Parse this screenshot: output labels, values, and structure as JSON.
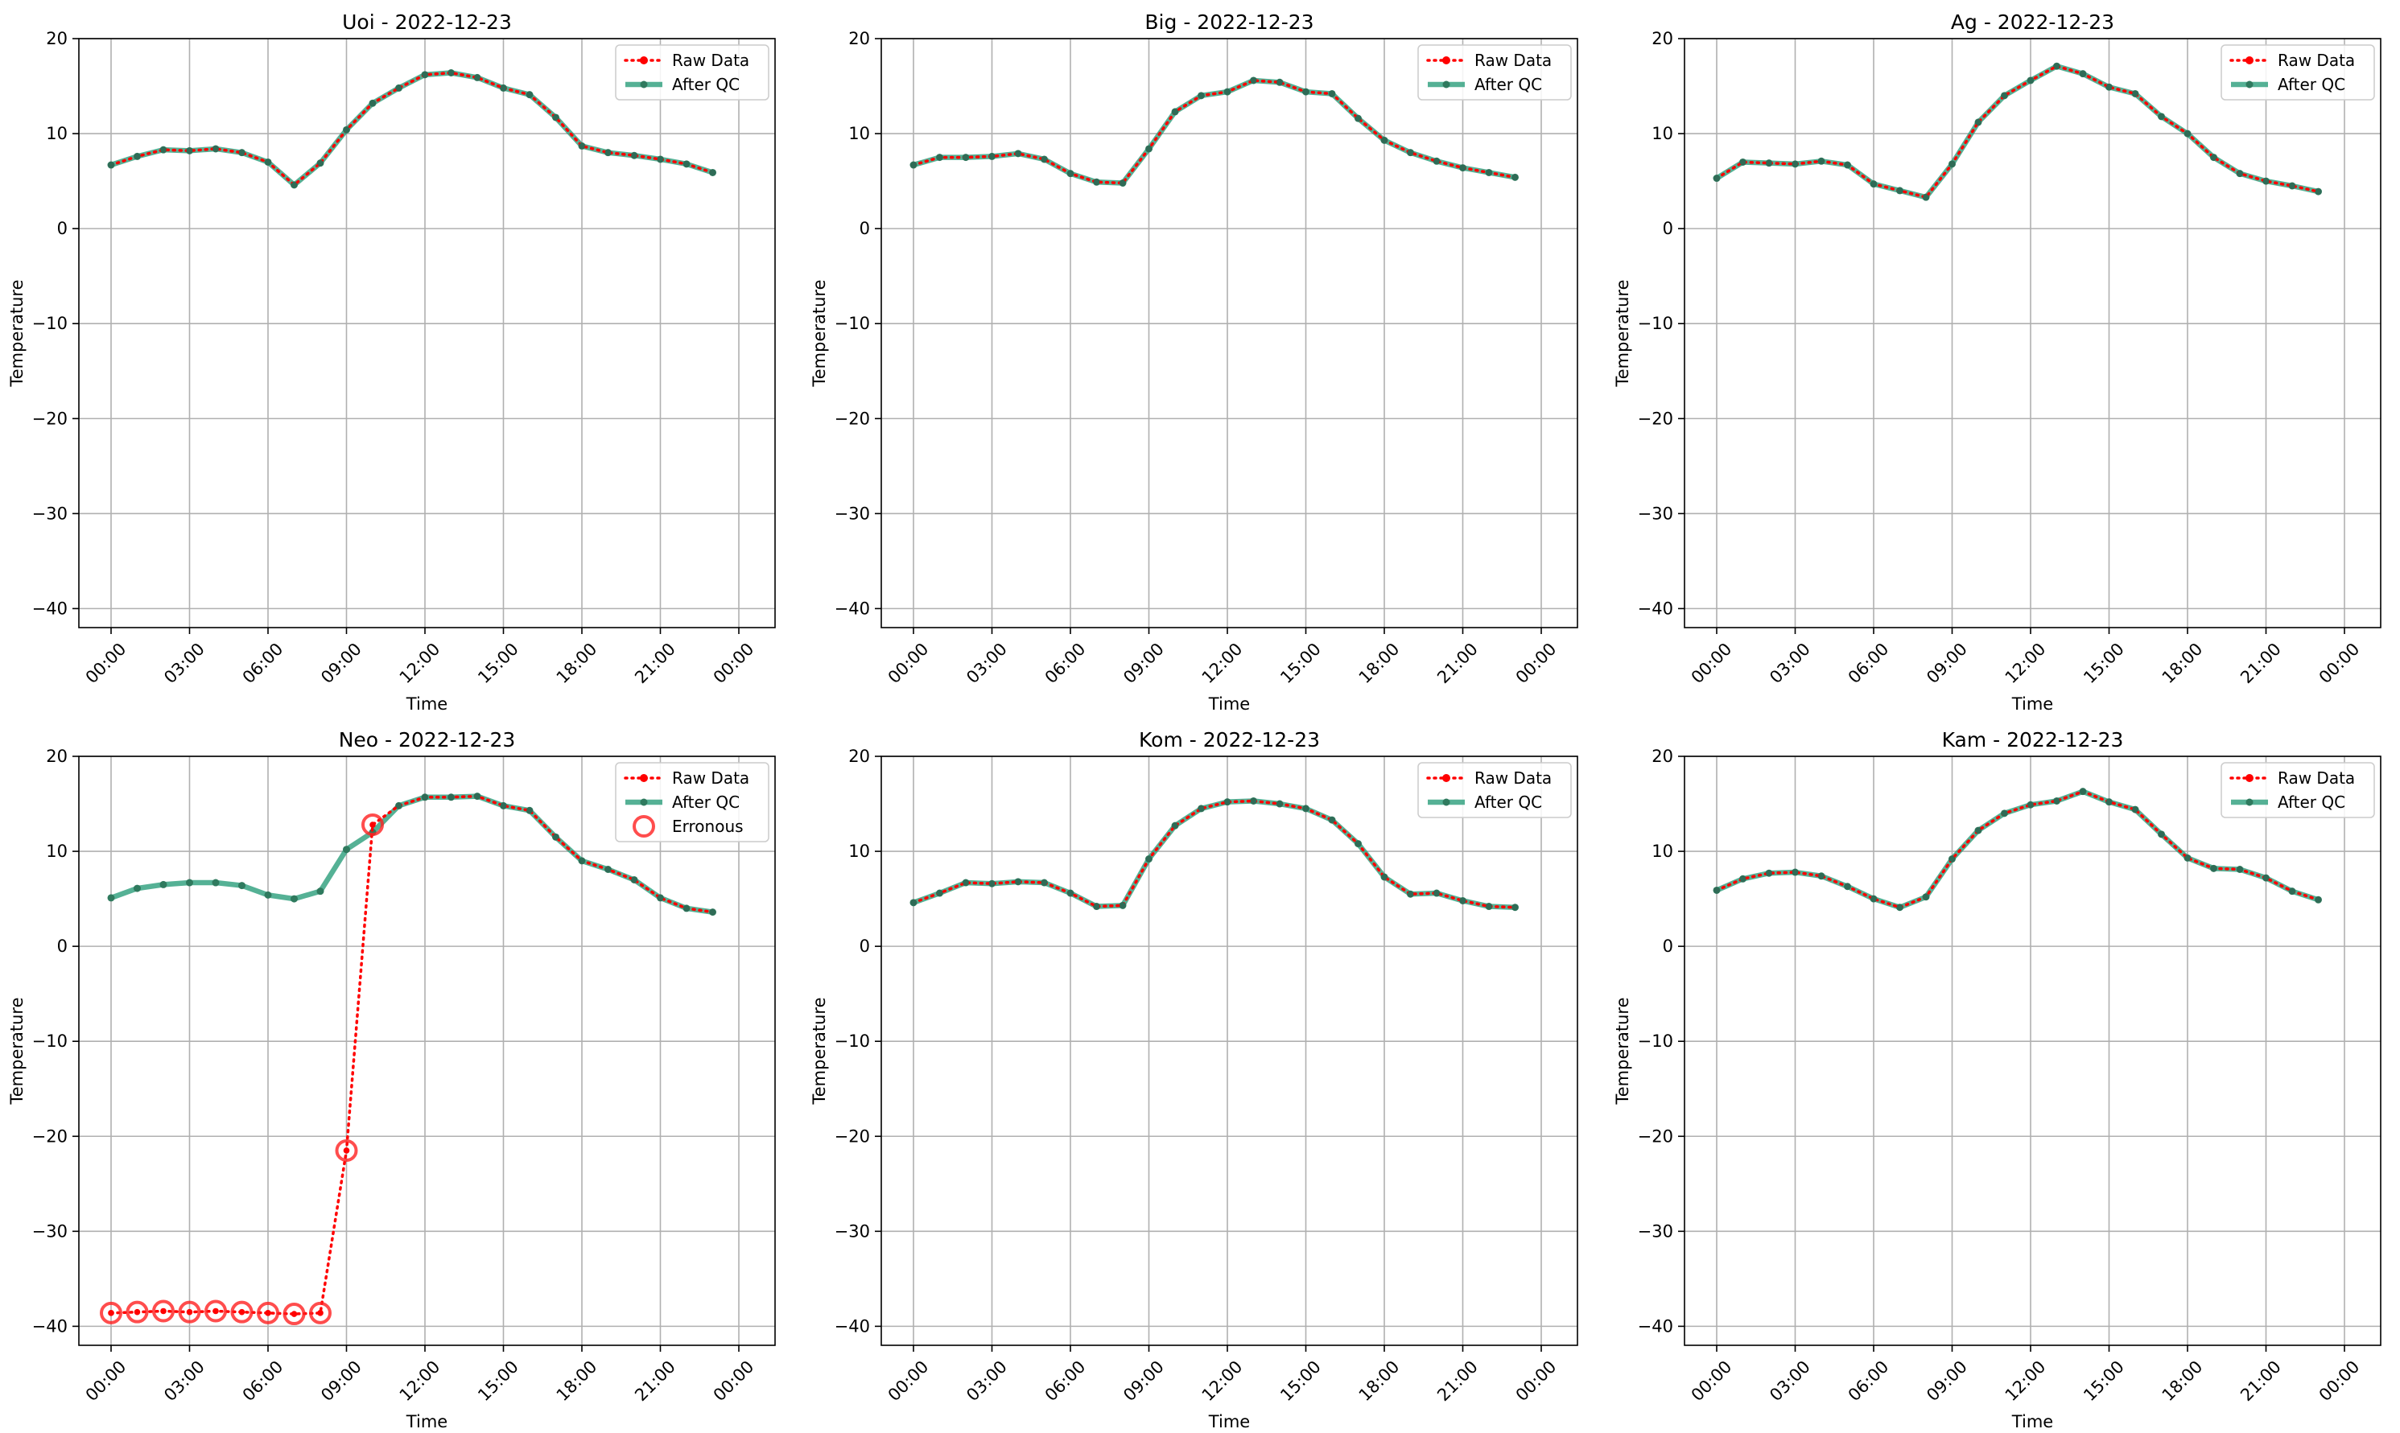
{
  "chart_data": [
    {
      "type": "line",
      "title": "Uoi - 2022-12-23",
      "xlabel": "Time",
      "ylabel": "Temperature",
      "ylim": [
        -42,
        20
      ],
      "yticks": [
        20,
        10,
        0,
        -10,
        -20,
        -30,
        -40
      ],
      "xticks": [
        "00:00",
        "03:00",
        "06:00",
        "09:00",
        "12:00",
        "15:00",
        "18:00",
        "21:00",
        "00:00"
      ],
      "legend_position": "top-right",
      "grid": true,
      "series": [
        {
          "name": "Raw Data",
          "color": "#ff0000",
          "style": "dotted-marker",
          "values": [
            6.7,
            7.6,
            8.3,
            8.2,
            8.4,
            8.0,
            7.0,
            4.6,
            6.9,
            10.4,
            13.2,
            14.8,
            16.2,
            16.4,
            15.9,
            14.8,
            14.1,
            11.7,
            8.7,
            8.0,
            7.7,
            7.3,
            6.8,
            5.9
          ]
        },
        {
          "name": "After QC",
          "color": "#2a9d7a",
          "style": "solid-marker",
          "values": [
            6.7,
            7.6,
            8.3,
            8.2,
            8.4,
            8.0,
            7.0,
            4.6,
            6.9,
            10.4,
            13.2,
            14.8,
            16.2,
            16.4,
            15.9,
            14.8,
            14.1,
            11.7,
            8.7,
            8.0,
            7.7,
            7.3,
            6.8,
            5.9
          ]
        }
      ],
      "erroneous": []
    },
    {
      "type": "line",
      "title": "Big - 2022-12-23",
      "xlabel": "Time",
      "ylabel": "Temperature",
      "ylim": [
        -42,
        20
      ],
      "yticks": [
        20,
        10,
        0,
        -10,
        -20,
        -30,
        -40
      ],
      "xticks": [
        "00:00",
        "03:00",
        "06:00",
        "09:00",
        "12:00",
        "15:00",
        "18:00",
        "21:00",
        "00:00"
      ],
      "legend_position": "top-right",
      "grid": true,
      "series": [
        {
          "name": "Raw Data",
          "color": "#ff0000",
          "style": "dotted-marker",
          "values": [
            6.7,
            7.5,
            7.5,
            7.6,
            7.9,
            7.3,
            5.8,
            4.9,
            4.8,
            8.4,
            12.3,
            14.0,
            14.4,
            15.6,
            15.4,
            14.4,
            14.2,
            11.6,
            9.3,
            8.0,
            7.1,
            6.4,
            5.9,
            5.4
          ]
        },
        {
          "name": "After QC",
          "color": "#2a9d7a",
          "style": "solid-marker",
          "values": [
            6.7,
            7.5,
            7.5,
            7.6,
            7.9,
            7.3,
            5.8,
            4.9,
            4.8,
            8.4,
            12.3,
            14.0,
            14.4,
            15.6,
            15.4,
            14.4,
            14.2,
            11.6,
            9.3,
            8.0,
            7.1,
            6.4,
            5.9,
            5.4
          ]
        }
      ],
      "erroneous": []
    },
    {
      "type": "line",
      "title": "Ag - 2022-12-23",
      "xlabel": "Time",
      "ylabel": "Temperature",
      "ylim": [
        -42,
        20
      ],
      "yticks": [
        20,
        10,
        0,
        -10,
        -20,
        -30,
        -40
      ],
      "xticks": [
        "00:00",
        "03:00",
        "06:00",
        "09:00",
        "12:00",
        "15:00",
        "18:00",
        "21:00",
        "00:00"
      ],
      "legend_position": "top-right",
      "grid": true,
      "series": [
        {
          "name": "Raw Data",
          "color": "#ff0000",
          "style": "dotted-marker",
          "values": [
            5.3,
            7.0,
            6.9,
            6.8,
            7.1,
            6.7,
            4.7,
            4.0,
            3.3,
            6.8,
            11.2,
            14.0,
            15.6,
            17.1,
            16.3,
            14.9,
            14.2,
            11.8,
            10.0,
            7.5,
            5.8,
            5.0,
            4.5,
            3.9
          ]
        },
        {
          "name": "After QC",
          "color": "#2a9d7a",
          "style": "solid-marker",
          "values": [
            5.3,
            7.0,
            6.9,
            6.8,
            7.1,
            6.7,
            4.7,
            4.0,
            3.3,
            6.8,
            11.2,
            14.0,
            15.6,
            17.1,
            16.3,
            14.9,
            14.2,
            11.8,
            10.0,
            7.5,
            5.8,
            5.0,
            4.5,
            3.9
          ]
        }
      ],
      "erroneous": []
    },
    {
      "type": "line",
      "title": "Neo - 2022-12-23",
      "xlabel": "Time",
      "ylabel": "Temperature",
      "ylim": [
        -42,
        20
      ],
      "yticks": [
        20,
        10,
        0,
        -10,
        -20,
        -30,
        -40
      ],
      "xticks": [
        "00:00",
        "03:00",
        "06:00",
        "09:00",
        "12:00",
        "15:00",
        "18:00",
        "21:00",
        "00:00"
      ],
      "legend_position": "top-right",
      "grid": true,
      "series": [
        {
          "name": "Raw Data",
          "color": "#ff0000",
          "style": "dotted-marker",
          "values": [
            -38.6,
            -38.5,
            -38.4,
            -38.5,
            -38.4,
            -38.5,
            -38.6,
            -38.7,
            -38.6,
            -21.5,
            12.8,
            14.8,
            15.7,
            15.7,
            15.8,
            14.8,
            14.3,
            11.5,
            9.0,
            8.1,
            7.0,
            5.1,
            4.0,
            3.6
          ]
        },
        {
          "name": "After QC",
          "color": "#2a9d7a",
          "style": "solid-marker",
          "values": [
            5.1,
            6.1,
            6.5,
            6.7,
            6.7,
            6.4,
            5.4,
            5.0,
            5.8,
            10.2,
            12.0,
            14.8,
            15.7,
            15.7,
            15.8,
            14.8,
            14.3,
            11.5,
            9.0,
            8.1,
            7.0,
            5.1,
            4.0,
            3.6
          ]
        }
      ],
      "erroneous": [
        {
          "hour": 0,
          "value": -38.6
        },
        {
          "hour": 1,
          "value": -38.5
        },
        {
          "hour": 2,
          "value": -38.4
        },
        {
          "hour": 3,
          "value": -38.5
        },
        {
          "hour": 4,
          "value": -38.4
        },
        {
          "hour": 5,
          "value": -38.5
        },
        {
          "hour": 6,
          "value": -38.6
        },
        {
          "hour": 7,
          "value": -38.7
        },
        {
          "hour": 8,
          "value": -38.6
        },
        {
          "hour": 9,
          "value": -21.5
        },
        {
          "hour": 10,
          "value": 12.8
        }
      ],
      "erroneous_label": "Erronous"
    },
    {
      "type": "line",
      "title": "Kom - 2022-12-23",
      "xlabel": "Time",
      "ylabel": "Temperature",
      "ylim": [
        -42,
        20
      ],
      "yticks": [
        20,
        10,
        0,
        -10,
        -20,
        -30,
        -40
      ],
      "xticks": [
        "00:00",
        "03:00",
        "06:00",
        "09:00",
        "12:00",
        "15:00",
        "18:00",
        "21:00",
        "00:00"
      ],
      "legend_position": "top-right",
      "grid": true,
      "series": [
        {
          "name": "Raw Data",
          "color": "#ff0000",
          "style": "dotted-marker",
          "values": [
            4.6,
            5.6,
            6.7,
            6.6,
            6.8,
            6.7,
            5.6,
            4.2,
            4.3,
            9.2,
            12.7,
            14.5,
            15.2,
            15.3,
            15.0,
            14.5,
            13.3,
            10.8,
            7.3,
            5.5,
            5.6,
            4.8,
            4.2,
            4.1
          ]
        },
        {
          "name": "After QC",
          "color": "#2a9d7a",
          "style": "solid-marker",
          "values": [
            4.6,
            5.6,
            6.7,
            6.6,
            6.8,
            6.7,
            5.6,
            4.2,
            4.3,
            9.2,
            12.7,
            14.5,
            15.2,
            15.3,
            15.0,
            14.5,
            13.3,
            10.8,
            7.3,
            5.5,
            5.6,
            4.8,
            4.2,
            4.1
          ]
        }
      ],
      "erroneous": []
    },
    {
      "type": "line",
      "title": "Kam - 2022-12-23",
      "xlabel": "Time",
      "ylabel": "Temperature",
      "ylim": [
        -42,
        20
      ],
      "yticks": [
        20,
        10,
        0,
        -10,
        -20,
        -30,
        -40
      ],
      "xticks": [
        "00:00",
        "03:00",
        "06:00",
        "09:00",
        "12:00",
        "15:00",
        "18:00",
        "21:00",
        "00:00"
      ],
      "legend_position": "top-right",
      "grid": true,
      "series": [
        {
          "name": "Raw Data",
          "color": "#ff0000",
          "style": "dotted-marker",
          "values": [
            5.9,
            7.1,
            7.7,
            7.8,
            7.4,
            6.3,
            5.0,
            4.1,
            5.2,
            9.2,
            12.2,
            14.0,
            14.9,
            15.3,
            16.3,
            15.2,
            14.4,
            11.8,
            9.3,
            8.2,
            8.1,
            7.2,
            5.8,
            4.9
          ]
        },
        {
          "name": "After QC",
          "color": "#2a9d7a",
          "style": "solid-marker",
          "values": [
            5.9,
            7.1,
            7.7,
            7.8,
            7.4,
            6.3,
            5.0,
            4.1,
            5.2,
            9.2,
            12.2,
            14.0,
            14.9,
            15.3,
            16.3,
            15.2,
            14.4,
            11.8,
            9.3,
            8.2,
            8.1,
            7.2,
            5.8,
            4.9
          ]
        }
      ],
      "erroneous": []
    }
  ]
}
